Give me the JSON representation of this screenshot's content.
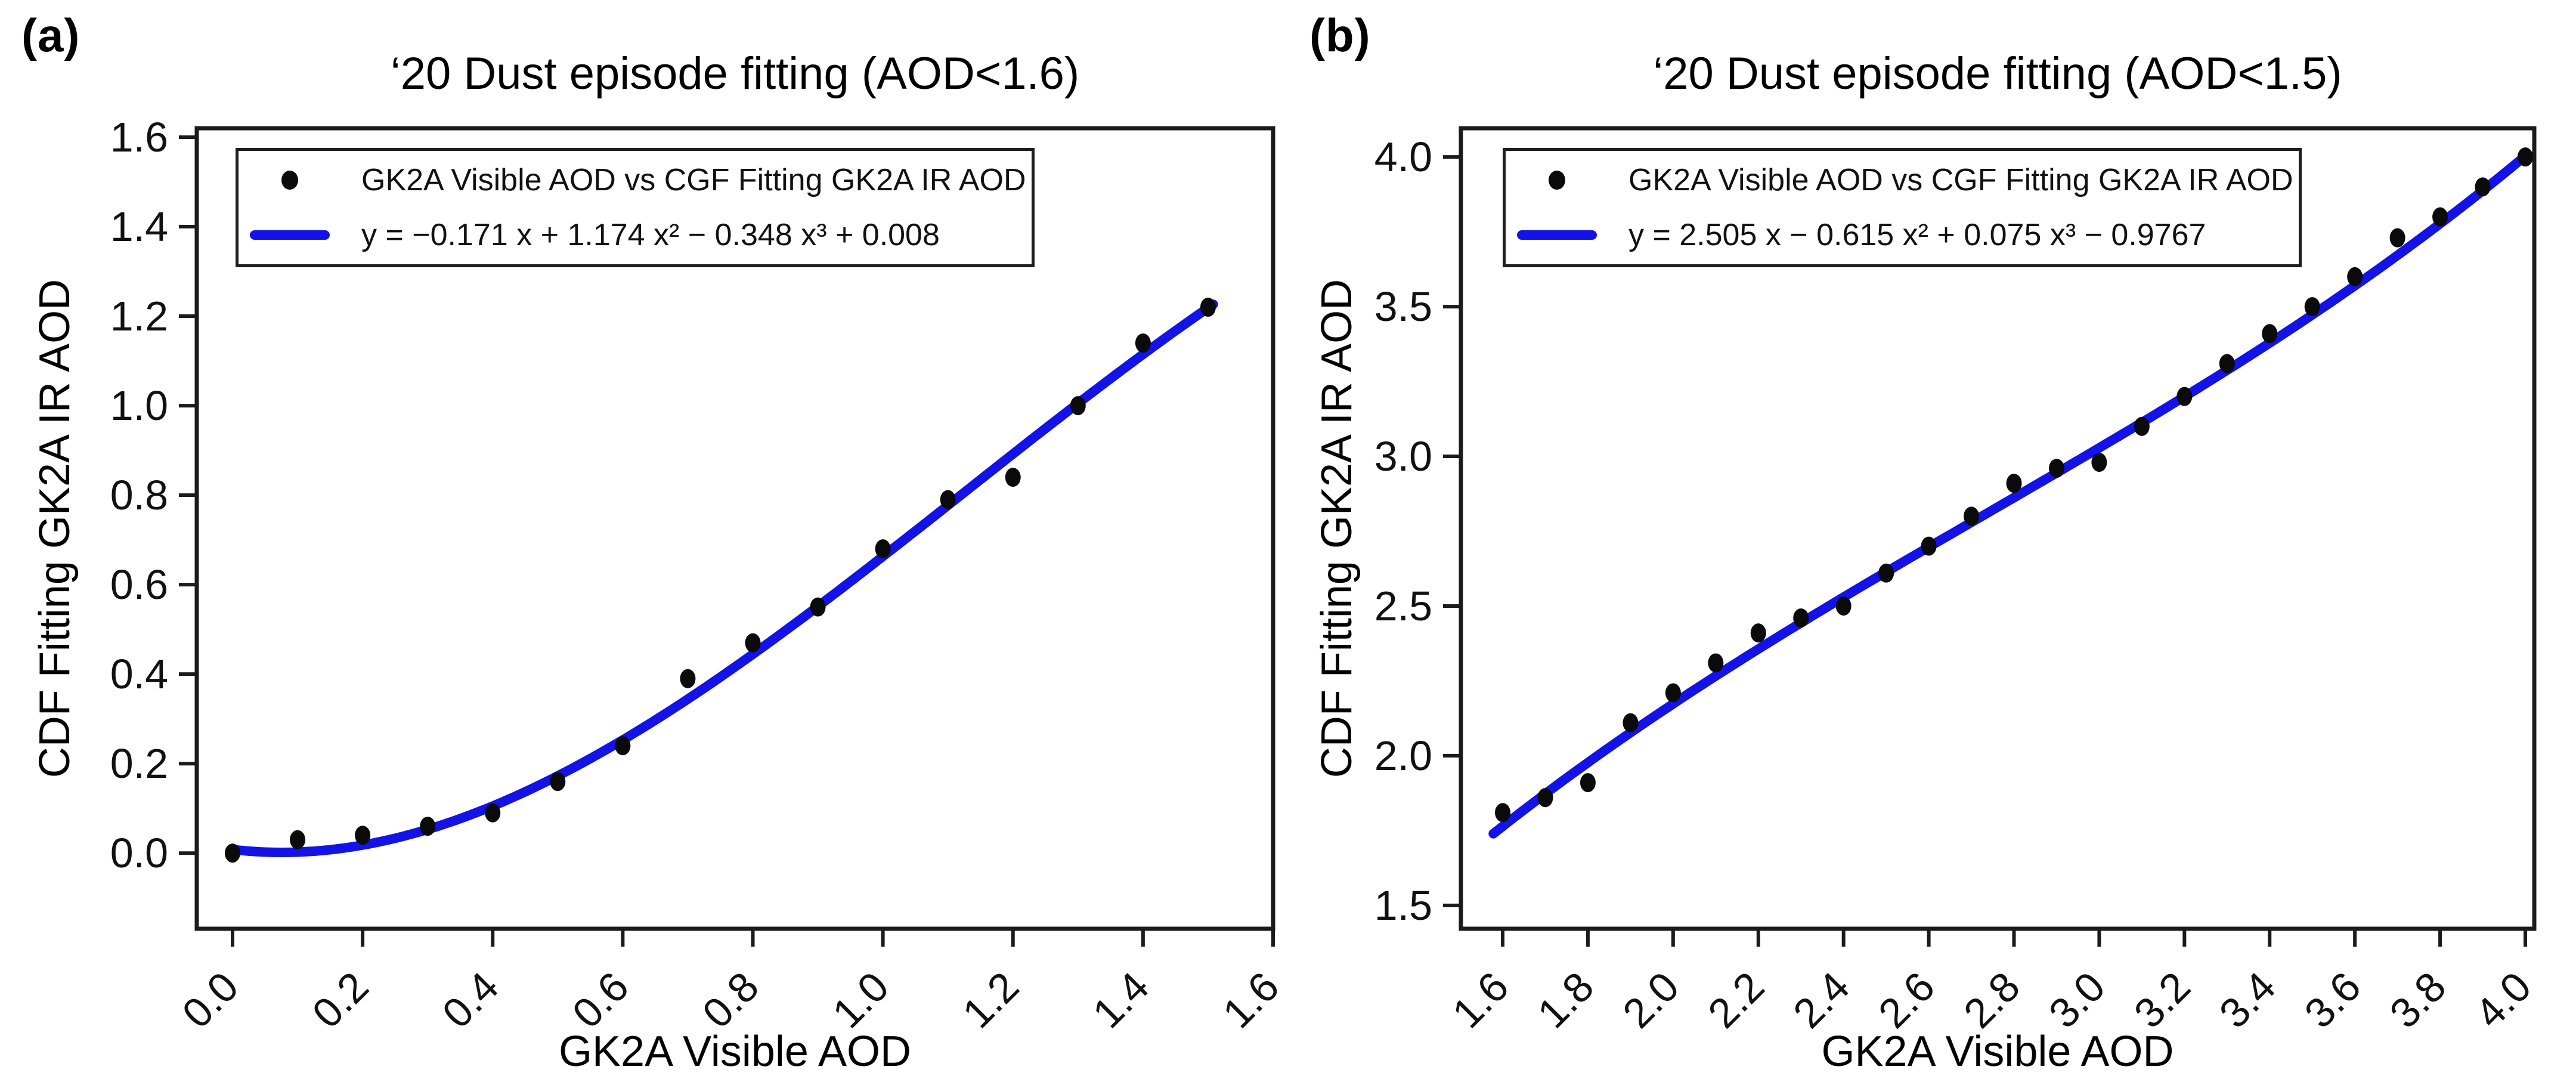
{
  "figure": {
    "background_color": "#ffffff",
    "panels_count": 2
  },
  "chart_data": [
    {
      "panel_label": "(a)",
      "type": "scatter",
      "title": "‘20 Dust episode fitting (AOD<1.6)",
      "xlabel": "GK2A Visible AOD",
      "ylabel": "CDF Fitting GK2A IR AOD",
      "xlim": [
        -0.055,
        1.6
      ],
      "ylim": [
        -0.169,
        1.62
      ],
      "xticks": [
        "0.0",
        "0.2",
        "0.4",
        "0.6",
        "0.8",
        "1.0",
        "1.2",
        "1.4",
        "1.6"
      ],
      "yticks": [
        "0.0",
        "0.2",
        "0.4",
        "0.6",
        "0.8",
        "1.0",
        "1.2",
        "1.4",
        "1.6"
      ],
      "grid": false,
      "legend": {
        "position": "upper left",
        "scatter_label": "GK2A Visible AOD vs CGF Fitting GK2A IR AOD",
        "fit_label": "y = −0.171 x + 1.174 x² − 0.348 x³ + 0.008"
      },
      "scatter_points": [
        [
          0.0,
          0.0
        ],
        [
          0.1,
          0.03
        ],
        [
          0.2,
          0.04
        ],
        [
          0.3,
          0.06
        ],
        [
          0.4,
          0.09
        ],
        [
          0.5,
          0.16
        ],
        [
          0.6,
          0.24
        ],
        [
          0.7,
          0.39
        ],
        [
          0.8,
          0.47
        ],
        [
          0.9,
          0.55
        ],
        [
          1.0,
          0.68
        ],
        [
          1.1,
          0.79
        ],
        [
          1.2,
          0.84
        ],
        [
          1.3,
          1.0
        ],
        [
          1.4,
          1.14
        ],
        [
          1.5,
          1.22
        ]
      ],
      "fit": {
        "model": "cubic polynomial",
        "coefficients_c0_c1_c2_c3": [
          0.008,
          -0.171,
          1.174,
          -0.348
        ],
        "domain": [
          0.0,
          1.508
        ]
      },
      "colors": {
        "fit_line": "#1313e8",
        "marker": "#0b0b0b",
        "axis": "#1b1b1b"
      }
    },
    {
      "panel_label": "(b)",
      "type": "scatter",
      "title": "‘20 Dust episode fitting (AOD<1.5)",
      "xlabel": "GK2A Visible AOD",
      "ylabel": "CDF Fitting GK2A IR AOD",
      "xlim": [
        1.502,
        4.021
      ],
      "ylim": [
        1.422,
        4.096
      ],
      "xticks": [
        "1.6",
        "1.8",
        "2.0",
        "2.2",
        "2.4",
        "2.6",
        "2.8",
        "3.0",
        "3.2",
        "3.4",
        "3.6",
        "3.8",
        "4.0"
      ],
      "yticks": [
        "1.5",
        "2.0",
        "2.5",
        "3.0",
        "3.5",
        "4.0"
      ],
      "grid": false,
      "legend": {
        "position": "upper left",
        "scatter_label": "GK2A Visible AOD vs CGF Fitting GK2A IR AOD",
        "fit_label": "y = 2.505 x − 0.615 x² + 0.075 x³ − 0.9767"
      },
      "scatter_points": [
        [
          1.6,
          1.81
        ],
        [
          1.7,
          1.86
        ],
        [
          1.8,
          1.91
        ],
        [
          1.9,
          2.11
        ],
        [
          2.0,
          2.21
        ],
        [
          2.1,
          2.31
        ],
        [
          2.2,
          2.41
        ],
        [
          2.3,
          2.46
        ],
        [
          2.4,
          2.5
        ],
        [
          2.5,
          2.61
        ],
        [
          2.6,
          2.7
        ],
        [
          2.7,
          2.8
        ],
        [
          2.8,
          2.91
        ],
        [
          2.9,
          2.96
        ],
        [
          3.0,
          2.98
        ],
        [
          3.1,
          3.1
        ],
        [
          3.2,
          3.2
        ],
        [
          3.3,
          3.31
        ],
        [
          3.4,
          3.41
        ],
        [
          3.5,
          3.5
        ],
        [
          3.6,
          3.6
        ],
        [
          3.7,
          3.73
        ],
        [
          3.8,
          3.8
        ],
        [
          3.9,
          3.9
        ],
        [
          4.0,
          4.0
        ]
      ],
      "fit": {
        "model": "cubic polynomial",
        "coefficients_c0_c1_c2_c3": [
          -0.9767,
          2.505,
          -0.615,
          0.075
        ],
        "domain": [
          1.578,
          4.005
        ]
      },
      "colors": {
        "fit_line": "#1313e8",
        "marker": "#0b0b0b",
        "axis": "#1b1b1b"
      }
    }
  ]
}
